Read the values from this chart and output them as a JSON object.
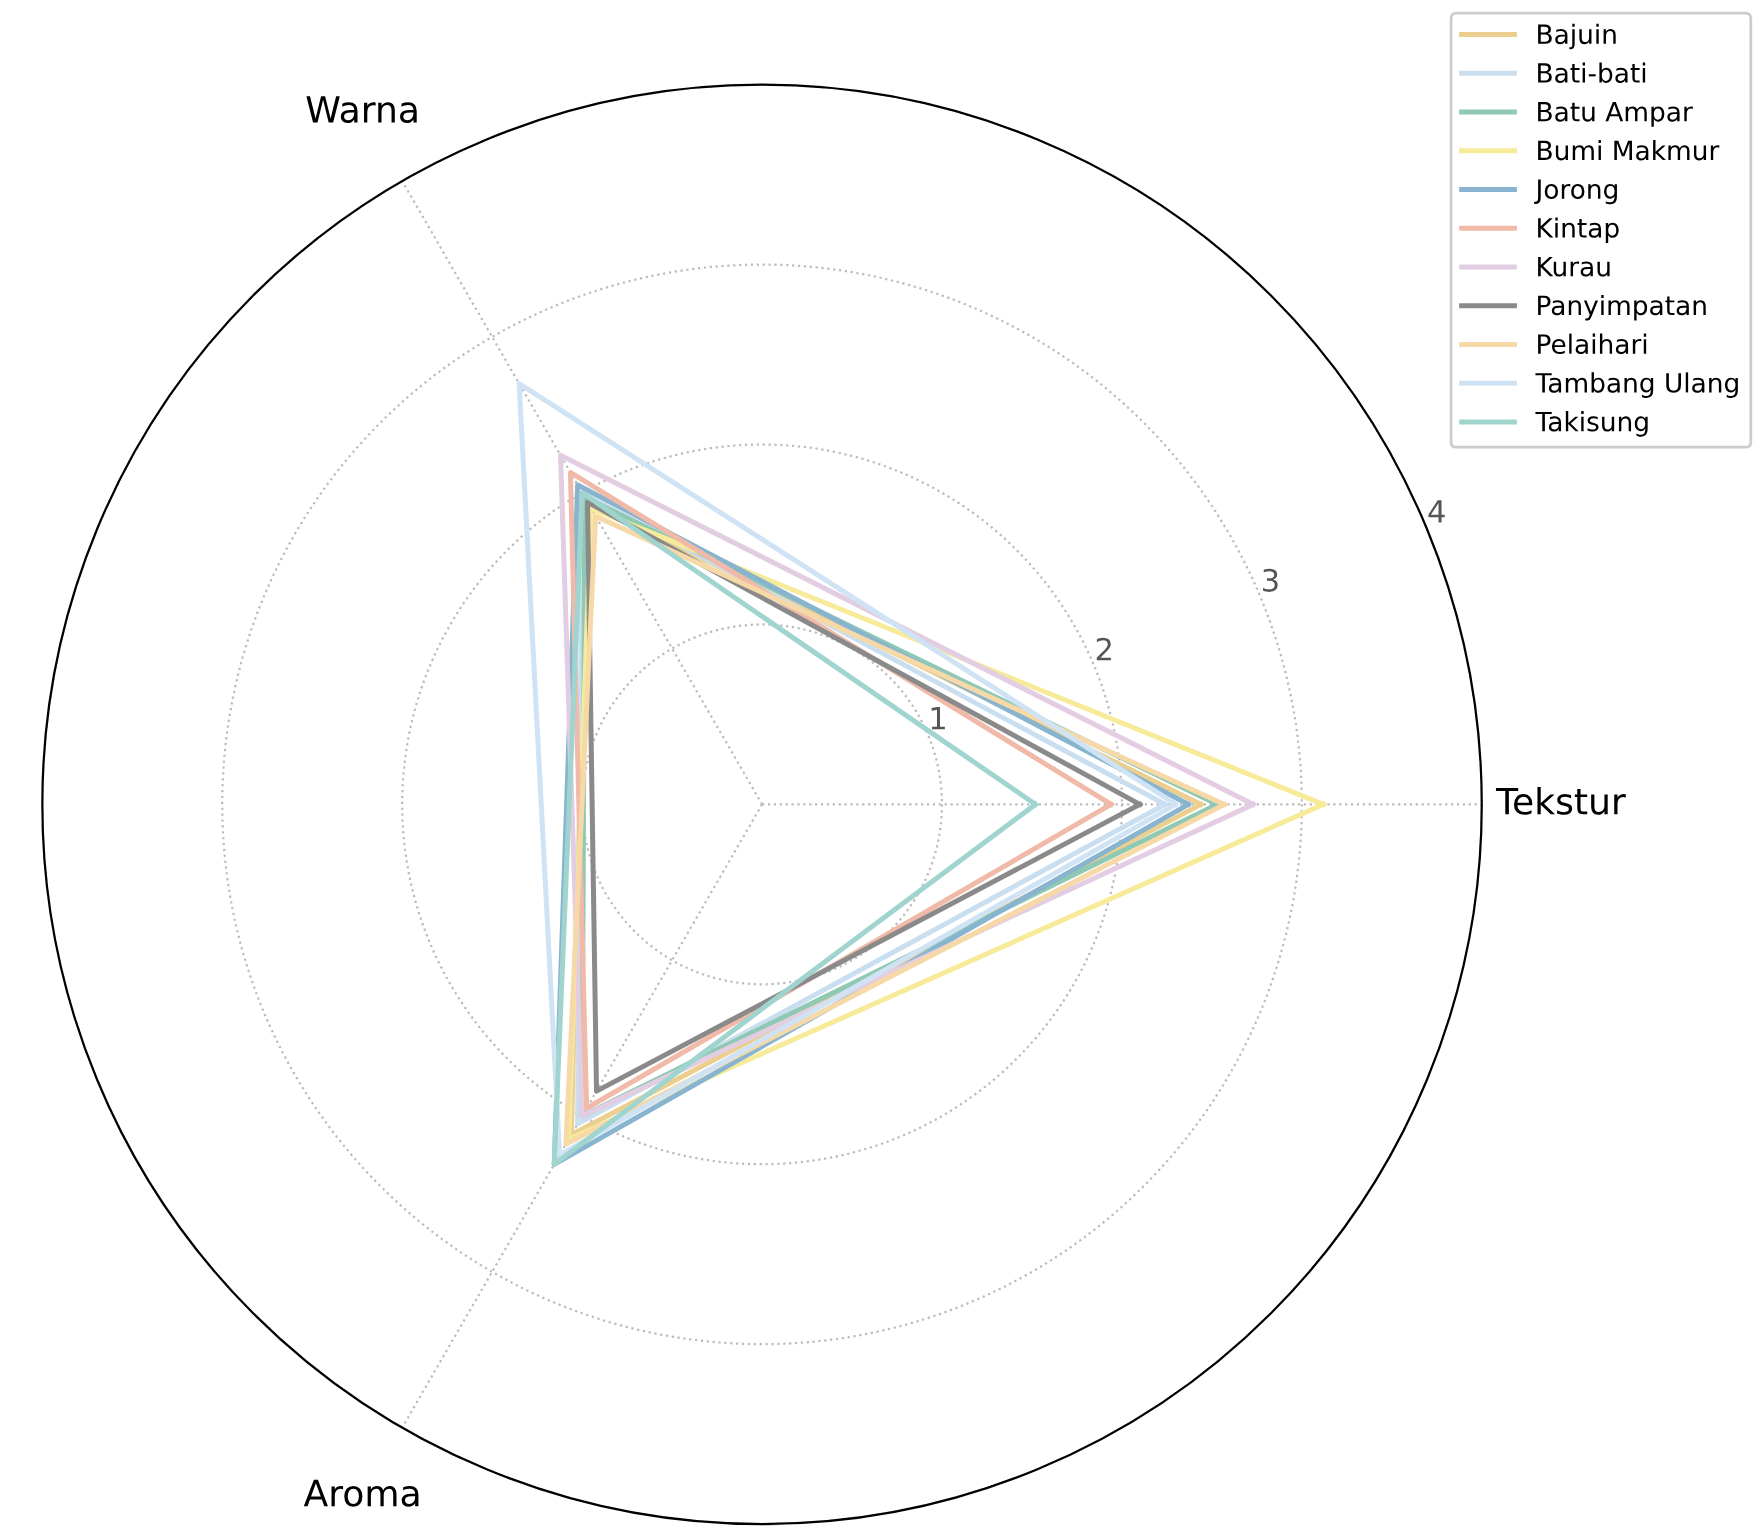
{
  "chart_data": {
    "type": "radar",
    "categories": [
      "Tekstur",
      "Aroma",
      "Warna"
    ],
    "ylim": [
      0,
      4
    ],
    "yticks": [
      1,
      2,
      3,
      4
    ],
    "grid": true,
    "legend": "top right",
    "line_style": "solid",
    "marker": "none",
    "series": [
      {
        "name": "Bajuin",
        "color": "#eccf8f",
        "values": [
          2.44,
          2.12,
          1.94
        ]
      },
      {
        "name": "Bati-bati",
        "color": "#c9dff0",
        "values": [
          2.24,
          2.05,
          2.0
        ]
      },
      {
        "name": "Batu Ampar",
        "color": "#8fc9b4",
        "values": [
          2.53,
          2.0,
          1.97
        ]
      },
      {
        "name": "Bumi Makmur",
        "color": "#f7eb9a",
        "values": [
          3.12,
          2.15,
          1.9
        ]
      },
      {
        "name": "Jorong",
        "color": "#88b4cf",
        "values": [
          2.37,
          2.31,
          2.05
        ]
      },
      {
        "name": "Kintap",
        "color": "#f0b9a8",
        "values": [
          1.94,
          1.95,
          2.13
        ]
      },
      {
        "name": "Kurau",
        "color": "#e3cde3",
        "values": [
          2.73,
          2.0,
          2.24
        ]
      },
      {
        "name": "Panyimpatan",
        "color": "#8a8a8a",
        "values": [
          2.1,
          1.84,
          1.94
        ]
      },
      {
        "name": "Pelaihari",
        "color": "#f6d9a6",
        "values": [
          2.57,
          2.18,
          1.85
        ]
      },
      {
        "name": "Tambang Ulang",
        "color": "#cfe3f5",
        "values": [
          2.3,
          2.25,
          2.7
        ]
      },
      {
        "name": "Takisung",
        "color": "#9fd4cf",
        "values": [
          1.52,
          2.31,
          2.0
        ]
      }
    ]
  }
}
